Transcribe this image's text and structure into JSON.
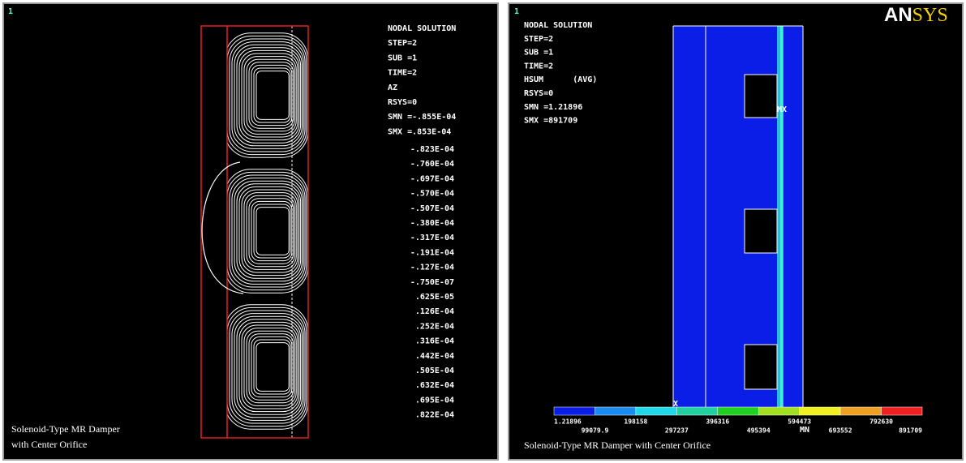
{
  "left_panel": {
    "window_number": "1",
    "info": [
      "NODAL SOLUTION",
      "STEP=2",
      "SUB =1",
      "TIME=2",
      "AZ",
      "RSYS=0",
      "SMN =-.855E-04",
      "SMX =.853E-04"
    ],
    "contour_values": [
      "-.823E-04",
      "-.760E-04",
      "-.697E-04",
      "-.570E-04",
      "-.507E-04",
      "-.380E-04",
      "-.317E-04",
      "-.191E-04",
      "-.127E-04",
      "-.750E-07",
      ".625E-05",
      ".126E-04",
      ".252E-04",
      ".316E-04",
      ".442E-04",
      ".505E-04",
      ".632E-04",
      ".695E-04",
      ".822E-04"
    ],
    "caption": [
      "Solenoid-Type MR Damper",
      "with Center Orifice"
    ]
  },
  "right_panel": {
    "window_number": "1",
    "logo": [
      "AN",
      "SYS"
    ],
    "info": [
      "NODAL SOLUTION",
      "STEP=2",
      "SUB =1",
      "TIME=2",
      "HSUM      (AVG)",
      "RSYS=0",
      "SMN =1.21896",
      "SMX =891709"
    ],
    "max_marker": "MX",
    "min_marker": "MN",
    "axis_marker": "X",
    "legend_top": [
      "1.21896",
      "198158",
      "396316",
      "594473",
      "792630"
    ],
    "legend_bottom": [
      "99079.9",
      "297237",
      "495394",
      "693552",
      "891709"
    ],
    "caption": "Solenoid-Type MR Damper with Center Orifice"
  }
}
